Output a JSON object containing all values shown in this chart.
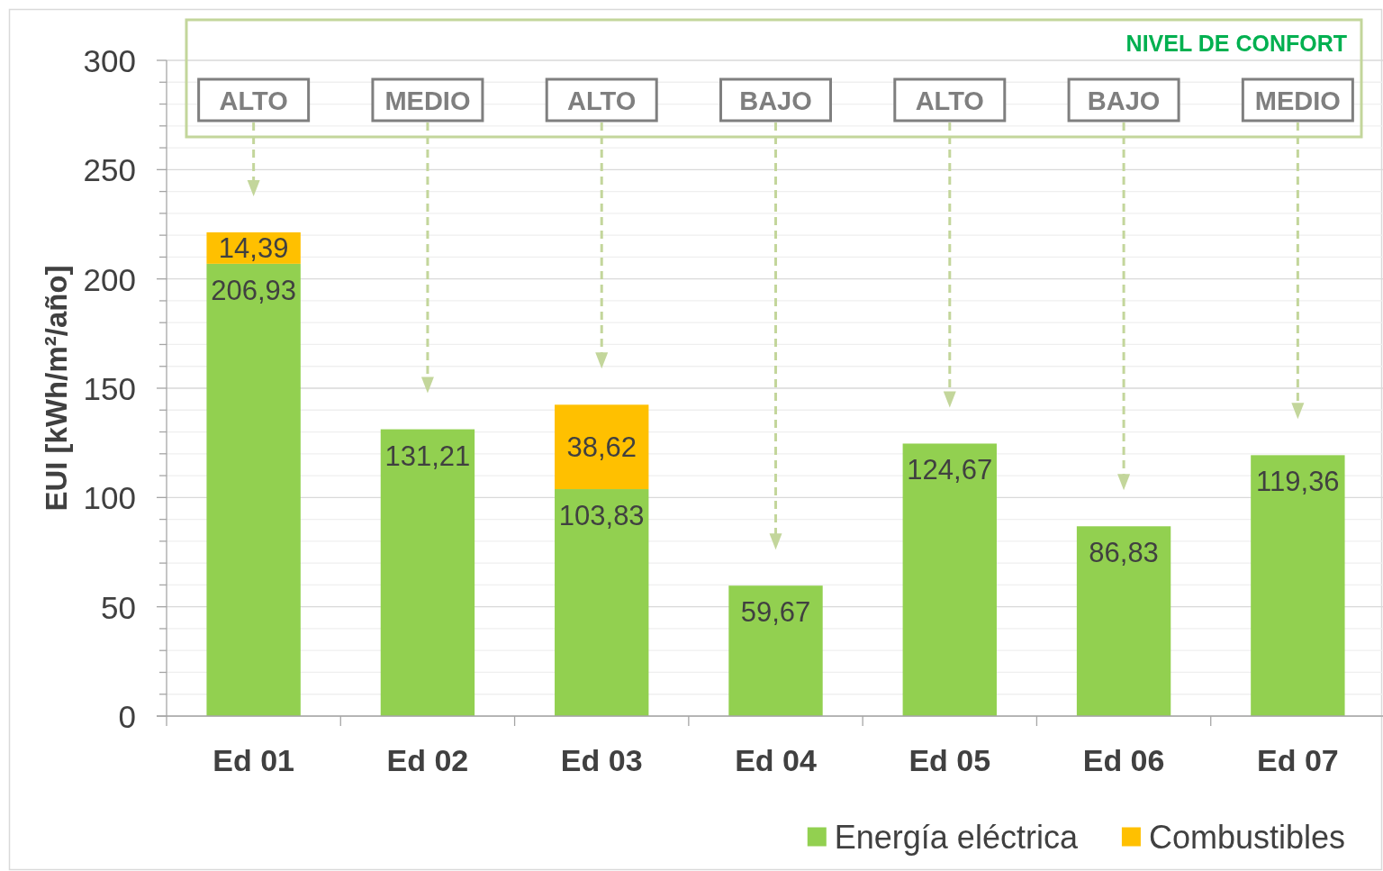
{
  "chart_data": {
    "type": "bar",
    "stacked": true,
    "categories": [
      "Ed 01",
      "Ed 02",
      "Ed 03",
      "Ed 04",
      "Ed 05",
      "Ed 06",
      "Ed 07"
    ],
    "series": [
      {
        "name": "Energía eléctrica",
        "color": "#92d050",
        "values": [
          206.93,
          131.21,
          103.83,
          59.67,
          124.67,
          86.83,
          119.36
        ],
        "value_labels": [
          "206,93",
          "131,21",
          "103,83",
          "59,67",
          "124,67",
          "86,83",
          "119,36"
        ]
      },
      {
        "name": "Combustibles",
        "color": "#ffc000",
        "values": [
          14.39,
          null,
          38.62,
          null,
          null,
          null,
          null
        ],
        "value_labels": [
          "14,39",
          null,
          "38,62",
          null,
          null,
          null,
          null
        ]
      }
    ],
    "ylabel": "EUI [kWh/m²/año]",
    "ylim": [
      0,
      300
    ],
    "yticks": [
      0,
      {
        "value": 10,
        "label": null
      },
      {
        "value": 20,
        "label": null
      },
      {
        "value": 30,
        "label": null
      },
      {
        "value": 40,
        "label": null
      },
      50,
      {
        "value": 60,
        "label": null
      },
      {
        "value": 70,
        "label": null
      },
      {
        "value": 80,
        "label": null
      },
      {
        "value": 90,
        "label": null
      },
      100,
      {
        "value": 110,
        "label": null
      },
      {
        "value": 120,
        "label": null
      },
      {
        "value": 130,
        "label": null
      },
      {
        "value": 140,
        "label": null
      },
      150,
      {
        "value": 160,
        "label": null
      },
      {
        "value": 170,
        "label": null
      },
      {
        "value": 180,
        "label": null
      },
      {
        "value": 190,
        "label": null
      },
      200,
      {
        "value": 210,
        "label": null
      },
      {
        "value": 220,
        "label": null
      },
      {
        "value": 230,
        "label": null
      },
      {
        "value": 240,
        "label": null
      },
      250,
      {
        "value": 260,
        "label": null
      },
      {
        "value": 270,
        "label": null
      },
      {
        "value": 280,
        "label": null
      },
      {
        "value": 290,
        "label": null
      },
      300
    ],
    "grid": "y",
    "legend": "bottom right",
    "annotations": [
      "NIVEL DE CONFORT",
      "ALTO",
      "MEDIO",
      "ALTO",
      "BAJO",
      "ALTO",
      "BAJO",
      "MEDIO"
    ]
  }
}
